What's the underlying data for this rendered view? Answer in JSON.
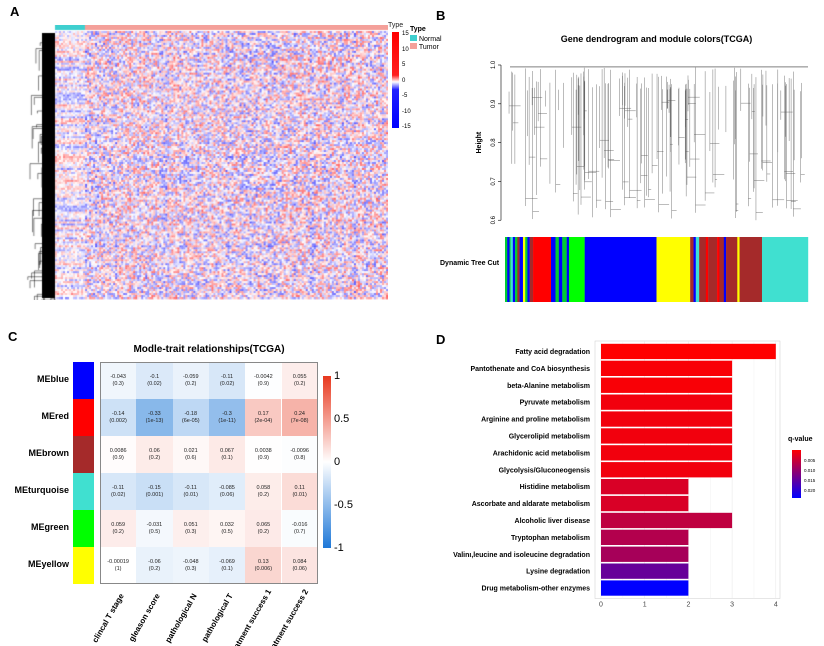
{
  "chart_data": [
    {
      "panel": "A",
      "type": "heatmap",
      "legend": {
        "type_title": "Type",
        "entries": [
          {
            "label": "Normal",
            "color": "#3fcfcf"
          },
          {
            "label": "Tumor",
            "color": "#f4a09a"
          }
        ],
        "scale_title": "Type",
        "scale_ticks": [
          15,
          10,
          5,
          0,
          -5,
          -10,
          -15
        ],
        "scale_colors": {
          "high": "#ff0000",
          "mid": "#ffffff",
          "low": "#0000ff"
        }
      },
      "column_groups": [
        {
          "label": "Normal",
          "fraction": 0.09
        },
        {
          "label": "Tumor",
          "fraction": 0.91
        }
      ]
    },
    {
      "panel": "B",
      "type": "dendrogram",
      "title": "Gene dendrogram and module colors(TCGA)",
      "ylabel": "Height",
      "yticks": [
        0.6,
        0.7,
        0.8,
        0.9,
        1.0
      ],
      "ylim": [
        0.58,
        1.0
      ],
      "colorbar_label": "Dynamic Tree Cut",
      "modules": [
        {
          "color": "#00cc33",
          "w": 2
        },
        {
          "color": "#0000ff",
          "w": 2
        },
        {
          "color": "#00cc33",
          "w": 1
        },
        {
          "color": "#40e0d0",
          "w": 2
        },
        {
          "color": "#0000ff",
          "w": 2
        },
        {
          "color": "#00cc33",
          "w": 2
        },
        {
          "color": "#a52a2a",
          "w": 2
        },
        {
          "color": "#0000ff",
          "w": 3
        },
        {
          "color": "#ffff00",
          "w": 2
        },
        {
          "color": "#00cc33",
          "w": 2
        },
        {
          "color": "#0000ff",
          "w": 2
        },
        {
          "color": "#a52a2a",
          "w": 3
        },
        {
          "color": "#ff0000",
          "w": 16
        },
        {
          "color": "#0000ff",
          "w": 4
        },
        {
          "color": "#00cc33",
          "w": 3
        },
        {
          "color": "#0000ff",
          "w": 3
        },
        {
          "color": "#00cc33",
          "w": 4
        },
        {
          "color": "#0000ff",
          "w": 2
        },
        {
          "color": "#00ff00",
          "w": 14
        },
        {
          "color": "#0000ff",
          "w": 64
        },
        {
          "color": "#ffff00",
          "w": 30
        },
        {
          "color": "#a52a2a",
          "w": 3
        },
        {
          "color": "#0000ff",
          "w": 2
        },
        {
          "color": "#40e0d0",
          "w": 3
        },
        {
          "color": "#a52a2a",
          "w": 6
        },
        {
          "color": "#ff0000",
          "w": 2
        },
        {
          "color": "#a52a2a",
          "w": 8
        },
        {
          "color": "#ff0000",
          "w": 2
        },
        {
          "color": "#a52a2a",
          "w": 4
        },
        {
          "color": "#0000ff",
          "w": 2
        },
        {
          "color": "#a52a2a",
          "w": 10
        },
        {
          "color": "#ffff00",
          "w": 2
        },
        {
          "color": "#a52a2a",
          "w": 20
        },
        {
          "color": "#40e0d0",
          "w": 41
        }
      ]
    },
    {
      "panel": "C",
      "type": "heatmap",
      "title": "Modle-trait relationships(TCGA)",
      "rows": [
        {
          "label": "MEblue",
          "color": "#0000ff"
        },
        {
          "label": "MEred",
          "color": "#ff0000"
        },
        {
          "label": "MEbrown",
          "color": "#a52a2a"
        },
        {
          "label": "MEturquoise",
          "color": "#40e0d0"
        },
        {
          "label": "MEgreen",
          "color": "#00ff00"
        },
        {
          "label": "MEyellow",
          "color": "#ffff00"
        }
      ],
      "columns": [
        "clincal T stage",
        "gleason score",
        "pathological N",
        "pathological T",
        "treatment success 1",
        "treatment success 2"
      ],
      "values": [
        [
          -0.043,
          -0.1,
          -0.059,
          -0.11,
          -0.0042,
          0.055
        ],
        [
          -0.14,
          -0.33,
          -0.18,
          -0.3,
          0.17,
          0.24
        ],
        [
          0.0086,
          0.06,
          0.021,
          0.067,
          0.0038,
          -0.0096
        ],
        [
          -0.11,
          -0.15,
          -0.11,
          -0.085,
          0.058,
          0.11
        ],
        [
          0.059,
          -0.031,
          0.051,
          0.032,
          0.065,
          -0.016
        ],
        [
          -0.00019,
          -0.06,
          -0.048,
          -0.069,
          0.13,
          0.084
        ]
      ],
      "cell_text": [
        [
          [
            "-0.043",
            "(0.3)"
          ],
          [
            "-0.1",
            "(0.02)"
          ],
          [
            "-0.059",
            "(0.2)"
          ],
          [
            "-0.11",
            "(0.02)"
          ],
          [
            "-0.0042",
            "(0.9)"
          ],
          [
            "0.055",
            "(0.2)"
          ]
        ],
        [
          [
            "-0.14",
            "(0.002)"
          ],
          [
            "-0.33",
            "(1e-13)"
          ],
          [
            "-0.18",
            "(6e-05)"
          ],
          [
            "-0.3",
            "(1e-11)"
          ],
          [
            "0.17",
            "(2e-04)"
          ],
          [
            "0.24",
            "(7e-08)"
          ]
        ],
        [
          [
            "0.0086",
            "(0.9)"
          ],
          [
            "0.06",
            "(0.2)"
          ],
          [
            "0.021",
            "(0.6)"
          ],
          [
            "0.067",
            "(0.1)"
          ],
          [
            "0.0038",
            "(0.9)"
          ],
          [
            "-0.0096",
            "(0.8)"
          ]
        ],
        [
          [
            "-0.11",
            "(0.02)"
          ],
          [
            "-0.15",
            "(0.001)"
          ],
          [
            "-0.11",
            "(0.01)"
          ],
          [
            "-0.085",
            "(0.06)"
          ],
          [
            "0.058",
            "(0.2)"
          ],
          [
            "0.11",
            "(0.01)"
          ]
        ],
        [
          [
            "0.059",
            "(0.2)"
          ],
          [
            "-0.031",
            "(0.5)"
          ],
          [
            "0.051",
            "(0.3)"
          ],
          [
            "0.032",
            "(0.5)"
          ],
          [
            "0.065",
            "(0.2)"
          ],
          [
            "-0.016",
            "(0.7)"
          ]
        ],
        [
          [
            "-0.00019",
            "(1)"
          ],
          [
            "-0.06",
            "(0.2)"
          ],
          [
            "-0.048",
            "(0.3)"
          ],
          [
            "-0.069",
            "(0.1)"
          ],
          [
            "0.13",
            "(0.006)"
          ],
          [
            "0.084",
            "(0.06)"
          ]
        ]
      ],
      "scale_ticks": [
        "1",
        "0.5",
        "0",
        "-0.5",
        "-1"
      ],
      "zlim": [
        -1,
        1
      ],
      "colors": {
        "high": "#e8381e",
        "mid": "#ffffff",
        "low": "#1e78d8"
      }
    },
    {
      "panel": "D",
      "type": "bar",
      "orientation": "horizontal",
      "categories": [
        "Fatty acid degradation",
        "Pantothenate and CoA biosynthesis",
        "beta-Alanine metabolism",
        "Pyruvate metabolism",
        "Arginine and proline metabolism",
        "Glycerolipid metabolism",
        "Arachidonic acid metabolism",
        "Glycolysis/Gluconeogensis",
        "Histidine metabolism",
        "Ascorbate and aldarate metabolism",
        "Alcoholic liver disease",
        "Tryptophan metabolism",
        "Valinı,leucine and isoleucine degradation",
        "Lysine degradation",
        "Drug metabolism-other enzymes"
      ],
      "values": [
        4,
        3,
        3,
        3,
        3,
        3,
        3,
        3,
        2,
        2,
        3,
        2,
        2,
        2,
        2
      ],
      "qvalues": [
        0.001,
        0.0015,
        0.0015,
        0.002,
        0.002,
        0.002,
        0.002,
        0.002,
        0.004,
        0.004,
        0.006,
        0.007,
        0.008,
        0.013,
        0.021
      ],
      "xlim": [
        0,
        4.2
      ],
      "xticks": [
        "0",
        "1",
        "2",
        "3",
        "4"
      ],
      "legend": {
        "title": "q-value",
        "ticks": [
          "0.005",
          "0.010",
          "0.015",
          "0.020"
        ],
        "range": [
          0.001,
          0.021
        ],
        "colors": {
          "low": "#ff0000",
          "high": "#0000ff"
        }
      },
      "grid": true
    }
  ],
  "panel_labels": {
    "a": "A",
    "b": "B",
    "c": "C",
    "d": "D"
  }
}
